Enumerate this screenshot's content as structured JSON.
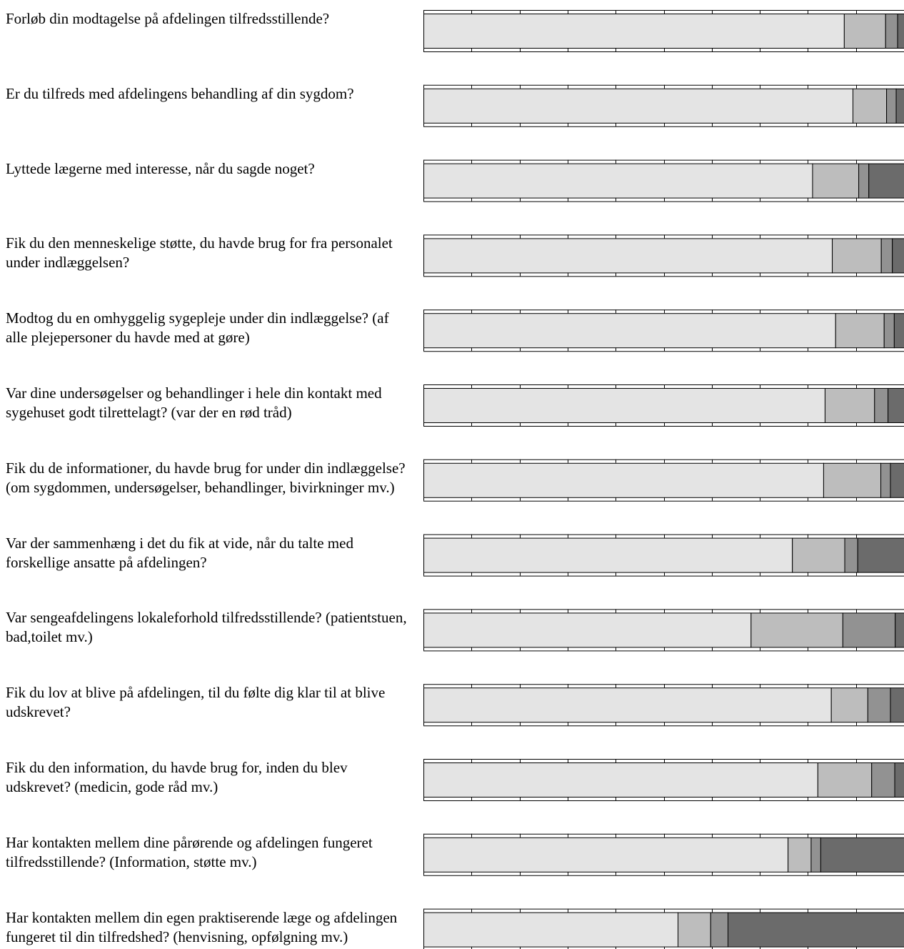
{
  "colors": {
    "seg1": "#e4e4e4",
    "seg2": "#bdbdbd",
    "seg3": "#929292",
    "seg4": "#6b6b6b",
    "outline": "#000000"
  },
  "chart_data": {
    "type": "bar",
    "orientation": "horizontal",
    "stacked": true,
    "xlim": [
      0,
      100
    ],
    "grid": false,
    "categories": [
      "Forløb din modtagelse på afdelingen tilfredsstillende?",
      "Er du tilfreds med afdelingens behandling af din sygdom?",
      "Lyttede lægerne med interesse, når du sagde noget?",
      "Fik du den menneskelige støtte, du havde brug for fra personalet under indlæggelsen?",
      "Modtog du en omhyggelig sygepleje under din indlæggelse? (af alle plejepersoner du havde med at gøre)",
      "Var dine undersøgelser og behandlinger i hele din kontakt med sygehuset godt tilrettelagt? (var der en rød tråd)",
      "Fik du de informationer, du havde brug for under din indlæggelse? (om sygdommen, undersøgelser, behandlinger, bivirkninger mv.)",
      "Var der sammenhæng i det du fik at vide, når du talte med forskellige ansatte på afdelingen?",
      "Var sengeafdelingens lokaleforhold tilfredsstillende? (patientstuen, bad,toilet mv.)",
      "Fik du lov at blive på afdelingen, til du følte dig klar til at blive udskrevet?",
      "Fik du den information, du havde brug for, inden du blev udskrevet? (medicin, gode råd mv.)",
      "Har kontakten mellem dine pårørende og afdelingen fungeret tilfredsstillende? (Information, støtte mv.)",
      "Har kontakten mellem din egen praktiserende læge og afdelingen fungeret til din tilfredshed? (henvisning, opfølgning mv.)"
    ],
    "series": [
      {
        "values": [
          87.5,
          89.3,
          80.9,
          85.0,
          85.7,
          83.5,
          83.2,
          76.7,
          68.1,
          84.8,
          82.0,
          75.8,
          52.9
        ]
      },
      {
        "values": [
          8.6,
          7.0,
          9.6,
          10.2,
          10.1,
          10.3,
          11.9,
          10.9,
          19.1,
          7.6,
          11.2,
          4.8,
          6.8
        ]
      },
      {
        "values": [
          2.5,
          2.0,
          2.1,
          2.3,
          2.1,
          2.8,
          2.0,
          2.7,
          10.9,
          4.7,
          4.8,
          2.0,
          3.6
        ]
      },
      {
        "values": [
          1.4,
          1.7,
          7.4,
          2.5,
          2.1,
          3.4,
          2.9,
          9.7,
          1.9,
          2.9,
          2.0,
          17.4,
          36.7
        ]
      }
    ]
  }
}
